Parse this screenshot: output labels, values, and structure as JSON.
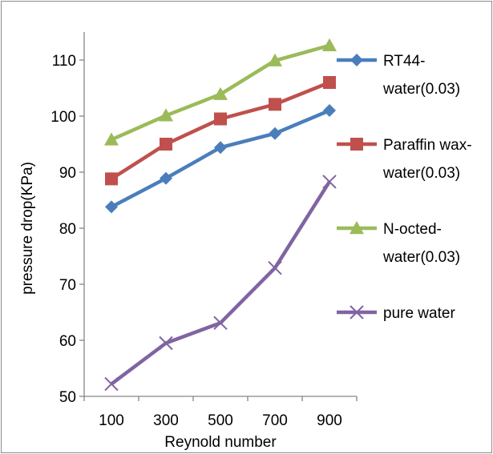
{
  "chart_data": {
    "type": "line",
    "title": "",
    "xlabel": "Reynold number",
    "ylabel": "pressure drop(KPa)",
    "x": [
      100,
      300,
      500,
      700,
      900
    ],
    "xticks": [
      "100",
      "300",
      "500",
      "700",
      "900"
    ],
    "ylim": [
      50,
      115
    ],
    "yticks": [
      50,
      60,
      70,
      80,
      90,
      100,
      110
    ],
    "grid": false,
    "legend_position": "right",
    "series": [
      {
        "name_lines": [
          "RT44-",
          "water(0.03)"
        ],
        "values": [
          83.8,
          88.9,
          94.4,
          96.9,
          101.0
        ],
        "color": "#4a7ebb",
        "marker": "diamond"
      },
      {
        "name_lines": [
          "Paraffin wax-",
          "water(0.03)"
        ],
        "values": [
          88.8,
          95.0,
          99.5,
          102.1,
          106.0
        ],
        "color": "#c0504d",
        "marker": "square"
      },
      {
        "name_lines": [
          "N-octed-",
          "water(0.03)"
        ],
        "values": [
          95.8,
          100.1,
          103.9,
          109.9,
          112.6
        ],
        "color": "#9bbb59",
        "marker": "triangle"
      },
      {
        "name_lines": [
          "pure water"
        ],
        "values": [
          52.2,
          59.5,
          63.1,
          72.9,
          88.3
        ],
        "color": "#8064a2",
        "marker": "x"
      }
    ]
  }
}
